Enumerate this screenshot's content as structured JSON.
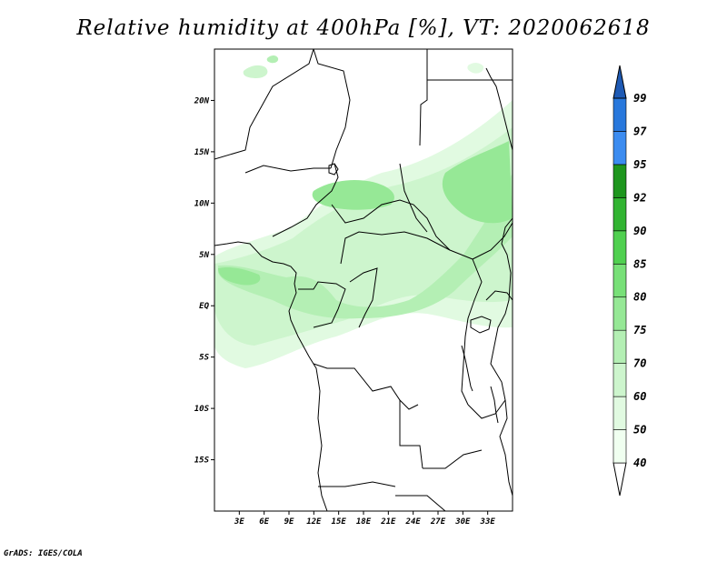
{
  "title": "Relative humidity at 400hPa [%], VT: 2020062618",
  "credit": "GrADS: IGES/COLA",
  "map": {
    "lon_range": [
      0,
      36
    ],
    "lat_range": [
      -20,
      25
    ],
    "lon_ticks": [
      {
        "value": 3,
        "label": "3E"
      },
      {
        "value": 6,
        "label": "6E"
      },
      {
        "value": 9,
        "label": "9E"
      },
      {
        "value": 12,
        "label": "12E"
      },
      {
        "value": 15,
        "label": "15E"
      },
      {
        "value": 18,
        "label": "18E"
      },
      {
        "value": 21,
        "label": "21E"
      },
      {
        "value": 24,
        "label": "24E"
      },
      {
        "value": 27,
        "label": "27E"
      },
      {
        "value": 30,
        "label": "30E"
      },
      {
        "value": 33,
        "label": "33E"
      }
    ],
    "lat_ticks": [
      {
        "value": 20,
        "label": "20N"
      },
      {
        "value": 15,
        "label": "15N"
      },
      {
        "value": 10,
        "label": "10N"
      },
      {
        "value": 5,
        "label": "5N"
      },
      {
        "value": 0,
        "label": "EQ"
      },
      {
        "value": -5,
        "label": "5S"
      },
      {
        "value": -10,
        "label": "10S"
      },
      {
        "value": -15,
        "label": "15S"
      }
    ]
  },
  "colorbar": {
    "levels": [
      {
        "label": "40",
        "color": "#f0fff0"
      },
      {
        "label": "50",
        "color": "#e1fae1"
      },
      {
        "label": "60",
        "color": "#cdf5cd"
      },
      {
        "label": "70",
        "color": "#b4efb4"
      },
      {
        "label": "75",
        "color": "#96e896"
      },
      {
        "label": "80",
        "color": "#78e078"
      },
      {
        "label": "85",
        "color": "#50d050"
      },
      {
        "label": "90",
        "color": "#32b432"
      },
      {
        "label": "92",
        "color": "#1e961e"
      },
      {
        "label": "95",
        "color": "#3c8cf0"
      },
      {
        "label": "97",
        "color": "#2878dc"
      },
      {
        "label": "99",
        "color": "#1e5ab4"
      }
    ],
    "below_color": "#ffffff",
    "above_color": "#1e5ab4"
  }
}
